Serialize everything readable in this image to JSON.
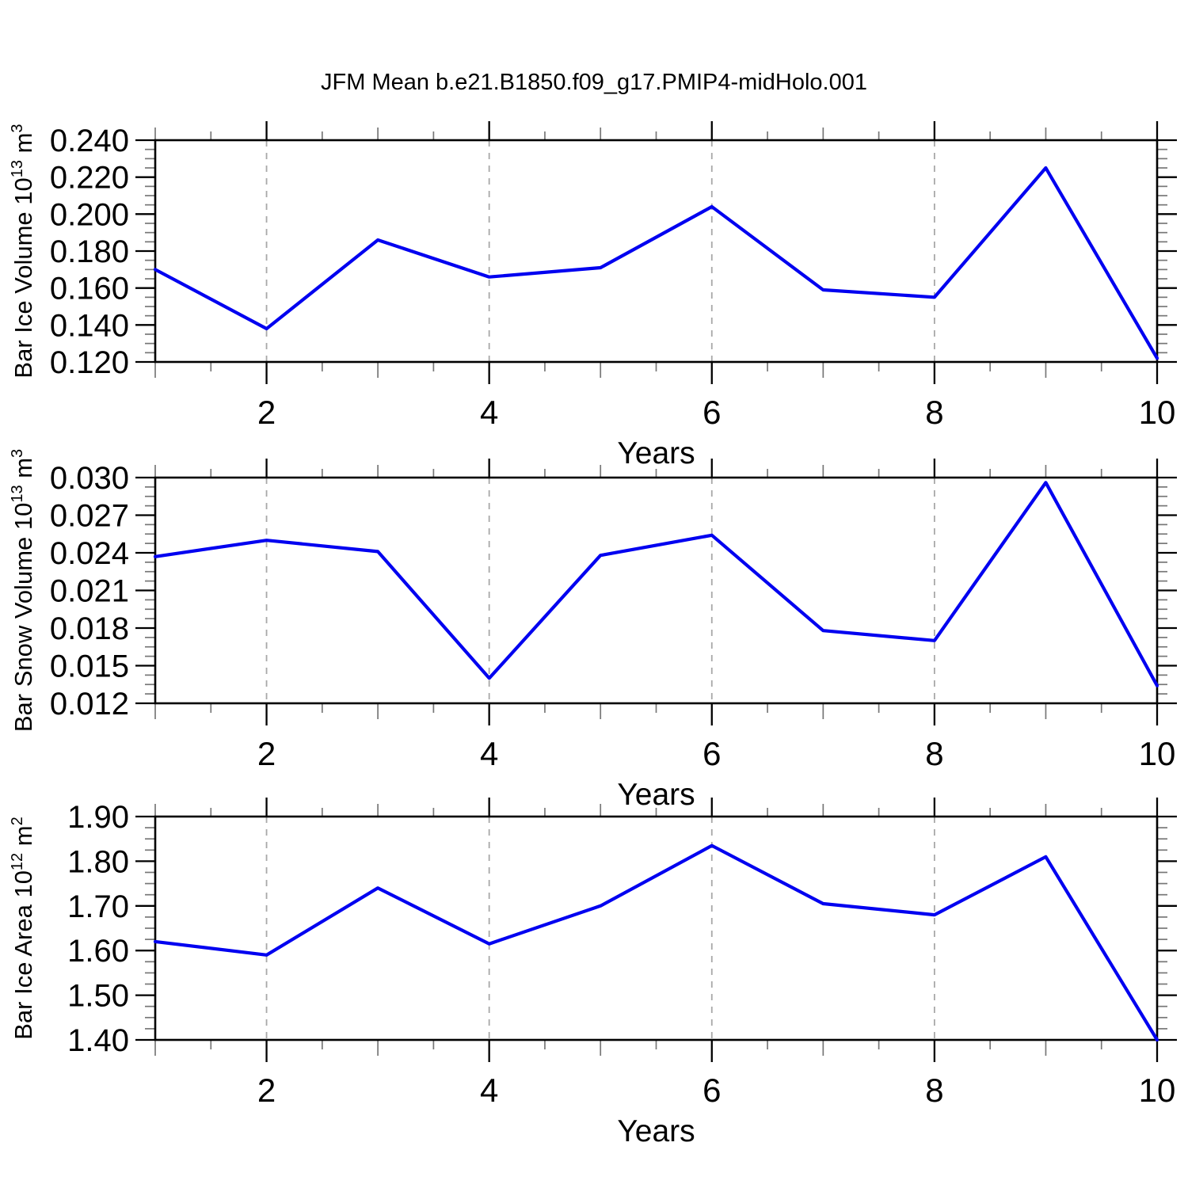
{
  "title": "JFM Mean b.e21.B1850.f09_g17.PMIP4-midHolo.001",
  "colors": {
    "line": "#0000f0",
    "axis": "#000000",
    "minor_tick": "#777777",
    "grid": "#a8a8a8",
    "background": "#ffffff",
    "text": "#000000"
  },
  "chart_data": [
    {
      "type": "line",
      "name": "bar-ice-volume",
      "ylabel_text": "Bar Ice Volume 10^13 m^3",
      "ylabel_parts": [
        {
          "t": "Bar Ice Volume 10"
        },
        {
          "t": "13",
          "sup": true
        },
        {
          "t": " m"
        },
        {
          "t": "3",
          "sup": true
        }
      ],
      "xlabel": "Years",
      "x": [
        1,
        2,
        3,
        4,
        5,
        6,
        7,
        8,
        9,
        10
      ],
      "values": [
        0.17,
        0.138,
        0.186,
        0.166,
        0.171,
        0.204,
        0.159,
        0.155,
        0.225,
        0.122
      ],
      "ylim": [
        0.12,
        0.24
      ],
      "ytick_step": 0.02,
      "yminor_step": 0.005,
      "ytick_labels": [
        "0.120",
        "0.140",
        "0.160",
        "0.180",
        "0.200",
        "0.220",
        "0.240"
      ],
      "xticks": [
        2,
        4,
        6,
        8,
        10
      ],
      "xtick_labels": [
        "2",
        "4",
        "6",
        "8",
        "10"
      ],
      "grid_x": [
        2,
        4,
        6,
        8
      ],
      "grid": "vertical-dashed",
      "legend": "none"
    },
    {
      "type": "line",
      "name": "bar-snow-volume",
      "ylabel_text": "Bar Snow Volume 10^13 m^3",
      "ylabel_parts": [
        {
          "t": "Bar Snow Volume 10"
        },
        {
          "t": "13",
          "sup": true
        },
        {
          "t": " m"
        },
        {
          "t": "3",
          "sup": true
        }
      ],
      "xlabel": "Years",
      "x": [
        1,
        2,
        3,
        4,
        5,
        6,
        7,
        8,
        9,
        10
      ],
      "values": [
        0.0237,
        0.025,
        0.0241,
        0.014,
        0.0238,
        0.0254,
        0.0178,
        0.017,
        0.0296,
        0.0134
      ],
      "ylim": [
        0.012,
        0.03
      ],
      "ytick_step": 0.003,
      "yminor_step": 0.00075,
      "ytick_labels": [
        "0.012",
        "0.015",
        "0.018",
        "0.021",
        "0.024",
        "0.027",
        "0.030"
      ],
      "xticks": [
        2,
        4,
        6,
        8,
        10
      ],
      "xtick_labels": [
        "2",
        "4",
        "6",
        "8",
        "10"
      ],
      "grid_x": [
        2,
        4,
        6,
        8
      ],
      "grid": "vertical-dashed",
      "legend": "none"
    },
    {
      "type": "line",
      "name": "bar-ice-area",
      "ylabel_text": "Bar Ice Area 10^12 m^2",
      "ylabel_parts": [
        {
          "t": "Bar Ice Area 10"
        },
        {
          "t": "12",
          "sup": true
        },
        {
          "t": " m"
        },
        {
          "t": "2",
          "sup": true
        }
      ],
      "xlabel": "Years",
      "x": [
        1,
        2,
        3,
        4,
        5,
        6,
        7,
        8,
        9,
        10
      ],
      "values": [
        1.62,
        1.59,
        1.74,
        1.615,
        1.7,
        1.835,
        1.705,
        1.68,
        1.81,
        1.4
      ],
      "ylim": [
        1.4,
        1.9
      ],
      "ytick_step": 0.1,
      "yminor_step": 0.025,
      "ytick_labels": [
        "1.40",
        "1.50",
        "1.60",
        "1.70",
        "1.80",
        "1.90"
      ],
      "xticks": [
        2,
        4,
        6,
        8,
        10
      ],
      "xtick_labels": [
        "2",
        "4",
        "6",
        "8",
        "10"
      ],
      "grid_x": [
        2,
        4,
        6,
        8
      ],
      "grid": "vertical-dashed",
      "legend": "none"
    }
  ]
}
